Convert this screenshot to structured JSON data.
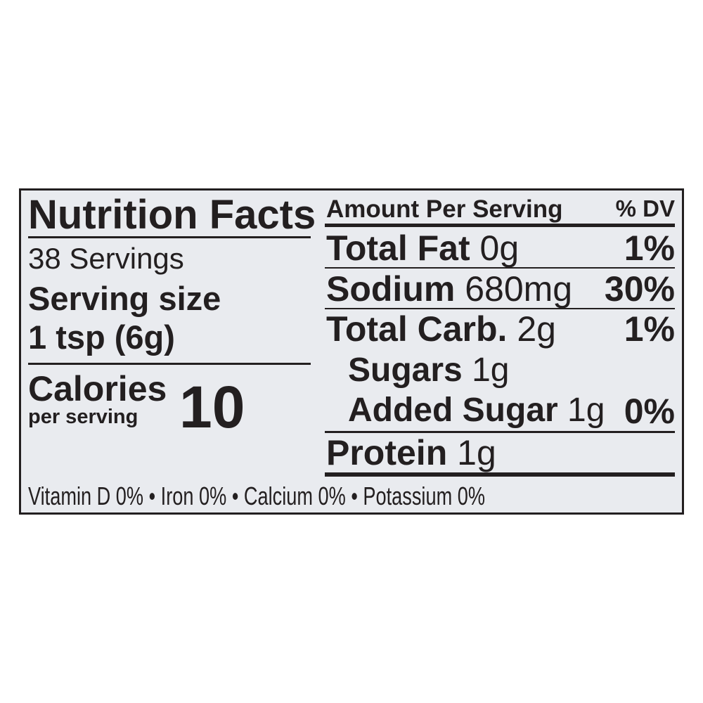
{
  "label": {
    "title": "Nutrition Facts",
    "servings": "38 Servings",
    "serving_size_label": "Serving size",
    "serving_size_value": "1 tsp (6g)",
    "calories_label": "Calories",
    "calories_sub": "per serving",
    "calories_value": "10",
    "amount_header": "Amount Per Serving",
    "dv_header": "% DV",
    "nutrients": [
      {
        "name": "Total Fat",
        "amount": "0g",
        "dv": "1%"
      },
      {
        "name": "Sodium",
        "amount": "680mg",
        "dv": "30%"
      },
      {
        "name": "Total Carb.",
        "amount": "2g",
        "dv": "1%"
      },
      {
        "name": "Sugars",
        "amount": "1g",
        "dv": ""
      },
      {
        "name": "Added Sugar",
        "amount": "1g",
        "dv": "0%"
      },
      {
        "name": "Protein",
        "amount": "1g",
        "dv": ""
      }
    ],
    "footer": "Vitamin D 0% • Iron 0% • Calcium 0% • Potassium 0%"
  },
  "colors": {
    "ink": "#231f20",
    "panel": "#e9ebef"
  }
}
